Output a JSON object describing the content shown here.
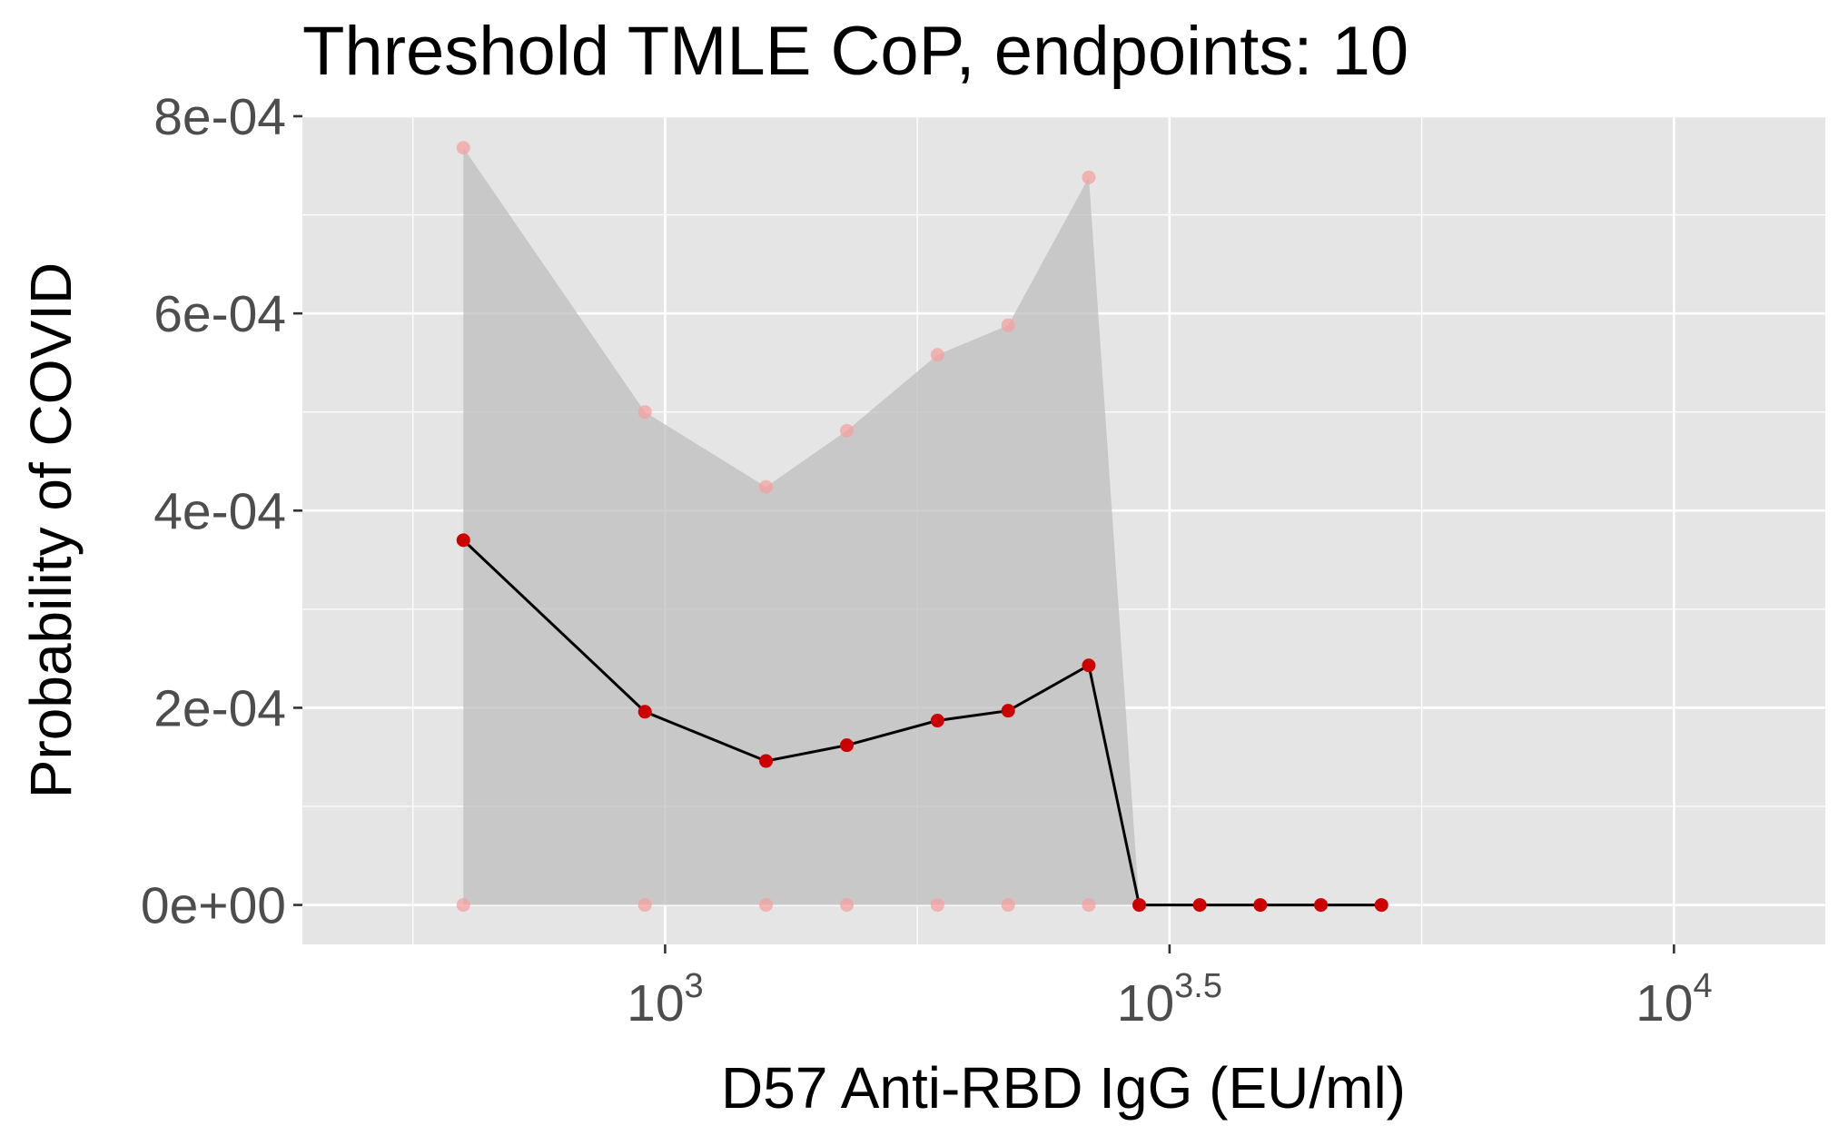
{
  "chart_data": {
    "type": "line",
    "title": "Threshold TMLE CoP, endpoints: 10",
    "xlabel": "D57 Anti-RBD IgG (EU/ml)",
    "ylabel": "Probability of COVID",
    "x_scale": "log10",
    "x_tick_labels": [
      {
        "base": "10",
        "exp": "3",
        "value": 1000
      },
      {
        "base": "10",
        "exp": "3.5",
        "value": 3162.28
      },
      {
        "base": "10",
        "exp": "4",
        "value": 10000
      }
    ],
    "y_tick_labels": [
      "0e+00",
      "2e-04",
      "4e-04",
      "6e-04",
      "8e-04"
    ],
    "y_ticks": [
      0,
      0.0002,
      0.0004,
      0.0006,
      0.0008
    ],
    "xlim": [
      437,
      14125
    ],
    "ylim": [
      -4e-05,
      0.0008
    ],
    "grid": true,
    "x": [
      631,
      955,
      1259,
      1514,
      1862,
      2188,
      2630,
      2951,
      3388,
      3890,
      4467,
      5129
    ],
    "log10_x": [
      2.8,
      2.98,
      3.1,
      3.18,
      3.27,
      3.34,
      3.42,
      3.47,
      3.53,
      3.59,
      3.65,
      3.71
    ],
    "series": [
      {
        "role": "estimate",
        "color": "#cc0000",
        "line_color": "#000000",
        "x": [
          631,
          955,
          1259,
          1514,
          1862,
          2188,
          2630,
          2951,
          3388,
          3890,
          4467,
          5129
        ],
        "values": [
          0.00037,
          0.000196,
          0.000146,
          0.000162,
          0.000187,
          0.000197,
          0.000243,
          0,
          0,
          0,
          0,
          0
        ]
      },
      {
        "role": "upper_ci",
        "color": "#f4a0a0",
        "x": [
          631,
          955,
          1259,
          1514,
          1862,
          2188,
          2630,
          2951,
          3388,
          3890,
          4467,
          5129
        ],
        "values": [
          0.000768,
          0.0005,
          0.000424,
          0.000481,
          0.000558,
          0.000588,
          0.000738,
          0,
          0,
          0,
          0,
          0
        ]
      },
      {
        "role": "lower_ci",
        "color": "#f4a0a0",
        "x": [
          631,
          955,
          1259,
          1514,
          1862,
          2188,
          2630
        ],
        "values": [
          0,
          0,
          0,
          0,
          0,
          0,
          0
        ]
      }
    ],
    "colors": {
      "panel_background": "#e5e5e5",
      "grid": "#ffffff",
      "ribbon": "#bdbdbd",
      "point": "#cc0000",
      "ci_point": "#f4a0a0",
      "line": "#000000"
    }
  }
}
